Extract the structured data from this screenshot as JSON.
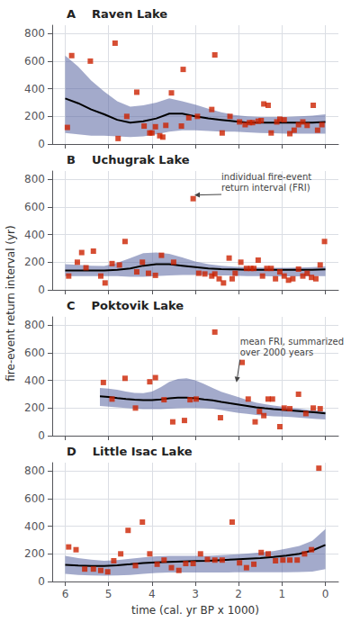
{
  "chart_data": [
    {
      "type": "scatter",
      "title": "A    Raven Lake",
      "ylabel": "fire-event return interval (yr)",
      "xlim": [
        6.3,
        -0.3
      ],
      "xticks": [
        6,
        5,
        4,
        3,
        2,
        1,
        0
      ],
      "ylim": [
        0,
        860
      ],
      "yticks": [
        0,
        200,
        400,
        600,
        800
      ],
      "grid": true,
      "tick_labels": "y",
      "series": [
        {
          "type": "band",
          "x": [
            6.0,
            5.7,
            5.4,
            5.1,
            4.8,
            4.5,
            4.2,
            3.9,
            3.6,
            3.3,
            3.0,
            2.7,
            2.4,
            2.1,
            1.8,
            1.5,
            1.2,
            0.9,
            0.6,
            0.3,
            0.0
          ],
          "upper": [
            640,
            560,
            460,
            380,
            310,
            270,
            280,
            300,
            330,
            310,
            285,
            255,
            230,
            210,
            200,
            195,
            195,
            195,
            200,
            205,
            215
          ],
          "lower": [
            80,
            70,
            60,
            60,
            55,
            50,
            55,
            70,
            90,
            100,
            100,
            95,
            90,
            90,
            85,
            80,
            78,
            75,
            75,
            75,
            75
          ],
          "color": "#5865a0"
        },
        {
          "type": "line",
          "x": [
            6.0,
            5.7,
            5.4,
            5.1,
            4.8,
            4.5,
            4.2,
            3.9,
            3.6,
            3.3,
            3.0,
            2.7,
            2.4,
            2.1,
            1.8,
            1.5,
            1.2,
            0.9,
            0.6,
            0.3,
            0.0
          ],
          "values": [
            330,
            295,
            250,
            215,
            175,
            155,
            165,
            185,
            220,
            220,
            200,
            185,
            175,
            165,
            155,
            155,
            155,
            155,
            155,
            155,
            160
          ],
          "color": "#000000"
        },
        {
          "type": "scatter",
          "x": [
            5.95,
            5.85,
            4.85,
            4.78,
            5.42,
            4.58,
            4.35,
            4.18,
            4.05,
            4.0,
            3.92,
            3.82,
            3.75,
            3.68,
            3.55,
            3.32,
            3.28,
            3.15,
            2.95,
            2.62,
            2.55,
            2.38,
            2.2,
            1.98,
            1.85,
            1.75,
            1.68,
            1.55,
            1.48,
            1.42,
            1.32,
            1.25,
            1.12,
            1.05,
            0.95,
            0.82,
            0.72,
            0.62,
            0.52,
            0.42,
            0.28,
            0.18,
            0.08
          ],
          "values": [
            120,
            640,
            730,
            40,
            600,
            200,
            375,
            130,
            80,
            80,
            125,
            60,
            50,
            135,
            370,
            130,
            540,
            190,
            200,
            250,
            645,
            80,
            200,
            160,
            140,
            155,
            155,
            165,
            170,
            290,
            280,
            80,
            160,
            180,
            175,
            75,
            100,
            140,
            160,
            135,
            280,
            100,
            140
          ],
          "color": "#cc2200",
          "marker": "square"
        }
      ]
    },
    {
      "type": "scatter",
      "title": "B    Uchugrak Lake",
      "xlim": [
        6.3,
        -0.3
      ],
      "xticks": [
        6,
        5,
        4,
        3,
        2,
        1,
        0
      ],
      "ylim": [
        0,
        860
      ],
      "yticks": [
        0,
        200,
        400,
        600,
        800
      ],
      "grid": true,
      "tick_labels": "y",
      "series": [
        {
          "type": "band",
          "x": [
            6.0,
            5.7,
            5.4,
            5.1,
            4.8,
            4.5,
            4.2,
            3.9,
            3.6,
            3.3,
            3.0,
            2.7,
            2.4,
            2.1,
            1.8,
            1.5,
            1.2,
            0.9,
            0.6,
            0.3,
            0.0
          ],
          "upper": [
            185,
            180,
            175,
            172,
            195,
            230,
            265,
            270,
            260,
            235,
            205,
            185,
            175,
            168,
            165,
            162,
            160,
            160,
            162,
            165,
            170
          ],
          "lower": [
            100,
            100,
            100,
            100,
            100,
            95,
            95,
            100,
            105,
            108,
            108,
            108,
            105,
            103,
            100,
            100,
            98,
            98,
            98,
            100,
            100
          ],
          "color": "#5865a0"
        },
        {
          "type": "line",
          "x": [
            6.0,
            5.7,
            5.4,
            5.1,
            4.8,
            4.5,
            4.2,
            3.9,
            3.6,
            3.3,
            3.0,
            2.7,
            2.4,
            2.1,
            1.8,
            1.5,
            1.2,
            0.9,
            0.6,
            0.3,
            0.0
          ],
          "values": [
            140,
            140,
            140,
            140,
            145,
            155,
            175,
            185,
            185,
            175,
            165,
            155,
            150,
            148,
            145,
            145,
            145,
            145,
            145,
            145,
            148
          ],
          "color": "#000000"
        },
        {
          "type": "scatter",
          "x": [
            5.92,
            5.72,
            5.62,
            5.52,
            5.35,
            5.18,
            5.08,
            4.92,
            4.75,
            4.62,
            4.35,
            4.22,
            4.08,
            3.92,
            3.78,
            3.5,
            3.05,
            2.92,
            2.78,
            2.62,
            2.55,
            2.45,
            2.35,
            2.22,
            2.15,
            2.08,
            1.95,
            1.82,
            1.72,
            1.65,
            1.55,
            1.45,
            1.35,
            1.25,
            1.15,
            1.05,
            0.95,
            0.85,
            0.75,
            0.62,
            0.52,
            0.42,
            0.32,
            0.22,
            0.12,
            0.02
          ],
          "values": [
            100,
            200,
            270,
            160,
            280,
            100,
            50,
            190,
            180,
            350,
            130,
            200,
            120,
            105,
            250,
            200,
            660,
            120,
            115,
            100,
            115,
            80,
            50,
            230,
            80,
            120,
            200,
            155,
            155,
            155,
            215,
            100,
            155,
            155,
            80,
            130,
            100,
            70,
            80,
            150,
            100,
            120,
            90,
            80,
            180,
            350
          ],
          "color": "#cc2200",
          "marker": "square"
        }
      ],
      "annotations": [
        {
          "text": "individual fire-event\nreturn interval (FRI)",
          "xy": [
            3.02,
            660
          ],
          "color": "#444444"
        }
      ]
    },
    {
      "type": "scatter",
      "title": "C    Poktovik Lake",
      "xlim": [
        6.3,
        -0.3
      ],
      "xticks": [
        6,
        5,
        4,
        3,
        2,
        1,
        0
      ],
      "ylim": [
        0,
        860
      ],
      "yticks": [
        0,
        200,
        400,
        600,
        800
      ],
      "grid": true,
      "tick_labels": "y",
      "series": [
        {
          "type": "band",
          "x": [
            5.2,
            5.0,
            4.8,
            4.6,
            4.4,
            4.2,
            4.0,
            3.8,
            3.6,
            3.4,
            3.2,
            3.0,
            2.8,
            2.6,
            2.4,
            2.2,
            2.0,
            1.8,
            1.6,
            1.4,
            1.2,
            1.0,
            0.8,
            0.6,
            0.4,
            0.2,
            0.0
          ],
          "upper": [
            345,
            340,
            332,
            320,
            310,
            308,
            320,
            350,
            390,
            410,
            415,
            400,
            375,
            345,
            318,
            298,
            278,
            258,
            240,
            228,
            218,
            210,
            200,
            195,
            188,
            182,
            175
          ],
          "lower": [
            215,
            210,
            205,
            200,
            195,
            192,
            192,
            192,
            195,
            198,
            200,
            200,
            198,
            195,
            185,
            175,
            165,
            158,
            150,
            145,
            140,
            138,
            135,
            130,
            125,
            120,
            118
          ],
          "color": "#5865a0"
        },
        {
          "type": "line",
          "x": [
            5.2,
            5.0,
            4.8,
            4.6,
            4.4,
            4.2,
            4.0,
            3.8,
            3.6,
            3.4,
            3.2,
            3.0,
            2.8,
            2.6,
            2.4,
            2.2,
            2.0,
            1.8,
            1.6,
            1.4,
            1.2,
            1.0,
            0.8,
            0.6,
            0.4,
            0.2,
            0.0
          ],
          "values": [
            285,
            280,
            272,
            265,
            260,
            258,
            258,
            262,
            270,
            275,
            275,
            270,
            262,
            255,
            245,
            235,
            225,
            215,
            205,
            198,
            192,
            188,
            182,
            178,
            172,
            168,
            162
          ],
          "color": "#000000"
        },
        {
          "type": "scatter",
          "x": [
            5.12,
            4.92,
            4.62,
            4.38,
            4.05,
            3.92,
            3.72,
            3.52,
            3.25,
            3.12,
            2.98,
            2.55,
            2.42,
            1.92,
            1.78,
            1.62,
            1.52,
            1.42,
            1.32,
            1.22,
            1.05,
            0.95,
            0.82,
            0.62,
            0.45,
            0.28,
            0.12
          ],
          "values": [
            385,
            265,
            415,
            200,
            390,
            420,
            260,
            100,
            110,
            260,
            265,
            750,
            130,
            530,
            265,
            100,
            175,
            145,
            265,
            265,
            65,
            200,
            195,
            300,
            160,
            200,
            195
          ],
          "color": "#cc2200",
          "marker": "square"
        }
      ],
      "annotations": [
        {
          "text": "mean FRI, summarized\nover 2000 years",
          "xy": [
            2.05,
            360
          ],
          "color": "#444444"
        }
      ]
    },
    {
      "type": "scatter",
      "title": "D    Little Isac Lake",
      "xlabel": "time (cal. yr BP x 1000)",
      "xlim": [
        6.3,
        -0.3
      ],
      "xticks": [
        6,
        5,
        4,
        3,
        2,
        1,
        0
      ],
      "ylim": [
        0,
        860
      ],
      "yticks": [
        0,
        200,
        400,
        600,
        800
      ],
      "grid": true,
      "series": [
        {
          "type": "band",
          "x": [
            6.0,
            5.7,
            5.4,
            5.1,
            4.8,
            4.5,
            4.2,
            3.9,
            3.6,
            3.3,
            3.0,
            2.7,
            2.4,
            2.1,
            1.8,
            1.5,
            1.2,
            0.9,
            0.6,
            0.3,
            0.0
          ],
          "upper": [
            185,
            170,
            158,
            150,
            155,
            165,
            175,
            182,
            185,
            185,
            185,
            185,
            190,
            196,
            202,
            210,
            220,
            238,
            258,
            295,
            380
          ],
          "lower": [
            55,
            48,
            44,
            42,
            44,
            48,
            55,
            62,
            65,
            65,
            65,
            65,
            65,
            66,
            66,
            66,
            66,
            66,
            68,
            72,
            90
          ],
          "color": "#5865a0"
        },
        {
          "type": "line",
          "x": [
            6.0,
            5.7,
            5.4,
            5.1,
            4.8,
            4.5,
            4.2,
            3.9,
            3.6,
            3.3,
            3.0,
            2.7,
            2.4,
            2.1,
            1.8,
            1.5,
            1.2,
            0.9,
            0.6,
            0.3,
            0.0
          ],
          "values": [
            120,
            115,
            112,
            112,
            118,
            125,
            133,
            138,
            142,
            145,
            148,
            150,
            155,
            160,
            165,
            170,
            178,
            188,
            200,
            225,
            265
          ],
          "color": "#000000"
        },
        {
          "type": "scatter",
          "x": [
            5.92,
            5.75,
            5.55,
            5.35,
            5.18,
            5.02,
            4.88,
            4.72,
            4.55,
            4.38,
            4.22,
            4.05,
            3.88,
            3.72,
            3.55,
            3.38,
            3.22,
            3.05,
            2.88,
            2.72,
            2.55,
            2.38,
            2.15,
            1.98,
            1.82,
            1.65,
            1.48,
            1.32,
            1.15,
            0.98,
            0.82,
            0.65,
            0.48,
            0.32,
            0.15
          ],
          "values": [
            250,
            230,
            90,
            90,
            80,
            70,
            150,
            200,
            370,
            115,
            430,
            200,
            125,
            155,
            100,
            80,
            130,
            130,
            200,
            160,
            155,
            155,
            430,
            135,
            100,
            125,
            210,
            200,
            150,
            155,
            155,
            155,
            200,
            230,
            820
          ],
          "color": "#cc2200",
          "marker": "square"
        }
      ]
    }
  ]
}
